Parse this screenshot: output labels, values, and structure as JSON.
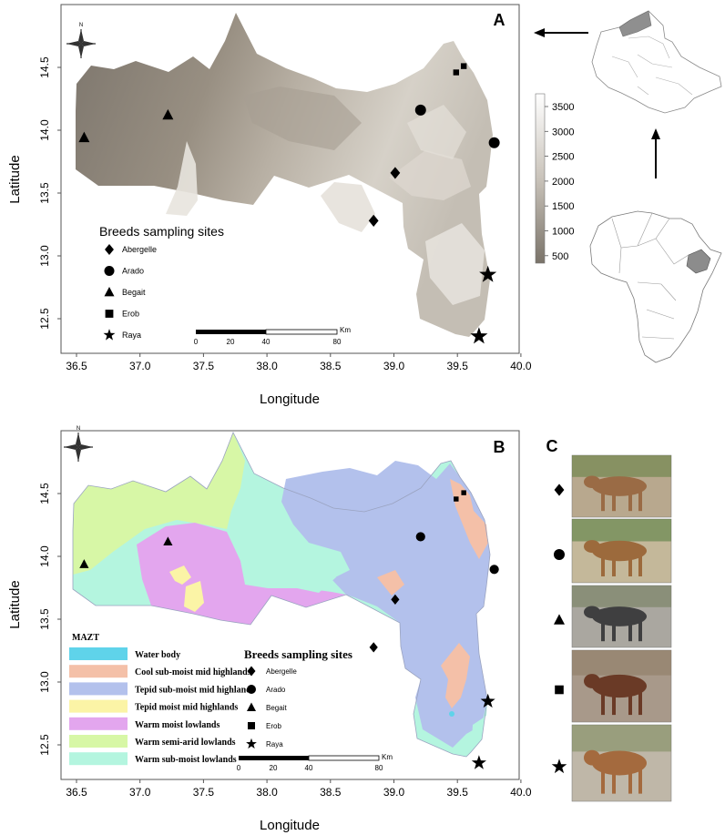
{
  "panels": {
    "a": {
      "letter": "A",
      "xlabel": "Longitude",
      "ylabel": "Latitude",
      "xticks": [
        "36.5",
        "37.0",
        "37.5",
        "38.0",
        "38.5",
        "39.0",
        "39.5",
        "40.0"
      ],
      "yticks": [
        "12.5",
        "13.0",
        "13.5",
        "14.0",
        "14.5"
      ],
      "elevation_scale": [
        "3500",
        "3000",
        "2500",
        "2000",
        "1500",
        "1000",
        "500"
      ],
      "legend_title": "Breeds sampling sites",
      "legend_items": [
        "Abergelle",
        "Arado",
        "Begait",
        "Erob",
        "Raya"
      ],
      "scalebar_ticks": [
        "0",
        "20",
        "40",
        "80"
      ],
      "scalebar_unit": "Km",
      "north_label": "N"
    },
    "b": {
      "letter": "B",
      "xlabel": "Longitude",
      "ylabel": "Latitude",
      "xticks": [
        "36.5",
        "37.0",
        "37.5",
        "38.0",
        "38.5",
        "39.0",
        "39.5",
        "40.0"
      ],
      "yticks": [
        "12.5",
        "13.0",
        "13.5",
        "14.0",
        "14.5"
      ],
      "mazt_title": "MAZT",
      "zones": [
        {
          "label": "Water body",
          "color": "#5fd3ea"
        },
        {
          "label": "Cool sub-moist mid highlands",
          "color": "#f4c0a8"
        },
        {
          "label": "Tepid  sub-moist mid highlands",
          "color": "#b3c1ec"
        },
        {
          "label": "Tepid moist mid highlands",
          "color": "#fbf4a6"
        },
        {
          "label": "Warm moist lowlands",
          "color": "#e3a6ee"
        },
        {
          "label": "Warm semi-arid lowlands",
          "color": "#d7f7a6"
        },
        {
          "label": "Warm sub-moist lowlands",
          "color": "#b4f5df"
        }
      ],
      "legend_title": "Breeds sampling sites",
      "legend_items": [
        "Abergelle",
        "Arado",
        "Begait",
        "Erob",
        "Raya"
      ],
      "scalebar_ticks": [
        "0",
        "20",
        "40",
        "80"
      ],
      "scalebar_unit": "Km",
      "north_label": "N"
    },
    "c": {
      "letter": "C",
      "breeds": [
        "Abergelle",
        "Arado",
        "Begait",
        "Erob",
        "Raya"
      ]
    }
  },
  "sampling_sites": [
    {
      "breed": "Begait",
      "symbol": "triangle",
      "lon": 36.56,
      "lat": 13.94
    },
    {
      "breed": "Begait",
      "symbol": "triangle",
      "lon": 37.22,
      "lat": 14.12
    },
    {
      "breed": "Arado",
      "symbol": "circle",
      "lon": 39.21,
      "lat": 14.16
    },
    {
      "breed": "Arado",
      "symbol": "circle",
      "lon": 39.79,
      "lat": 13.9
    },
    {
      "breed": "Abergelle",
      "symbol": "diamond",
      "lon": 39.01,
      "lat": 13.66
    },
    {
      "breed": "Abergelle",
      "symbol": "diamond",
      "lon": 38.84,
      "lat": 13.28
    },
    {
      "breed": "Erob",
      "symbol": "square",
      "lon": 39.49,
      "lat": 14.46
    },
    {
      "breed": "Erob",
      "symbol": "square",
      "lon": 39.55,
      "lat": 14.51
    },
    {
      "breed": "Raya",
      "symbol": "star",
      "lon": 39.74,
      "lat": 12.85
    },
    {
      "breed": "Raya",
      "symbol": "star",
      "lon": 39.67,
      "lat": 12.36
    }
  ]
}
